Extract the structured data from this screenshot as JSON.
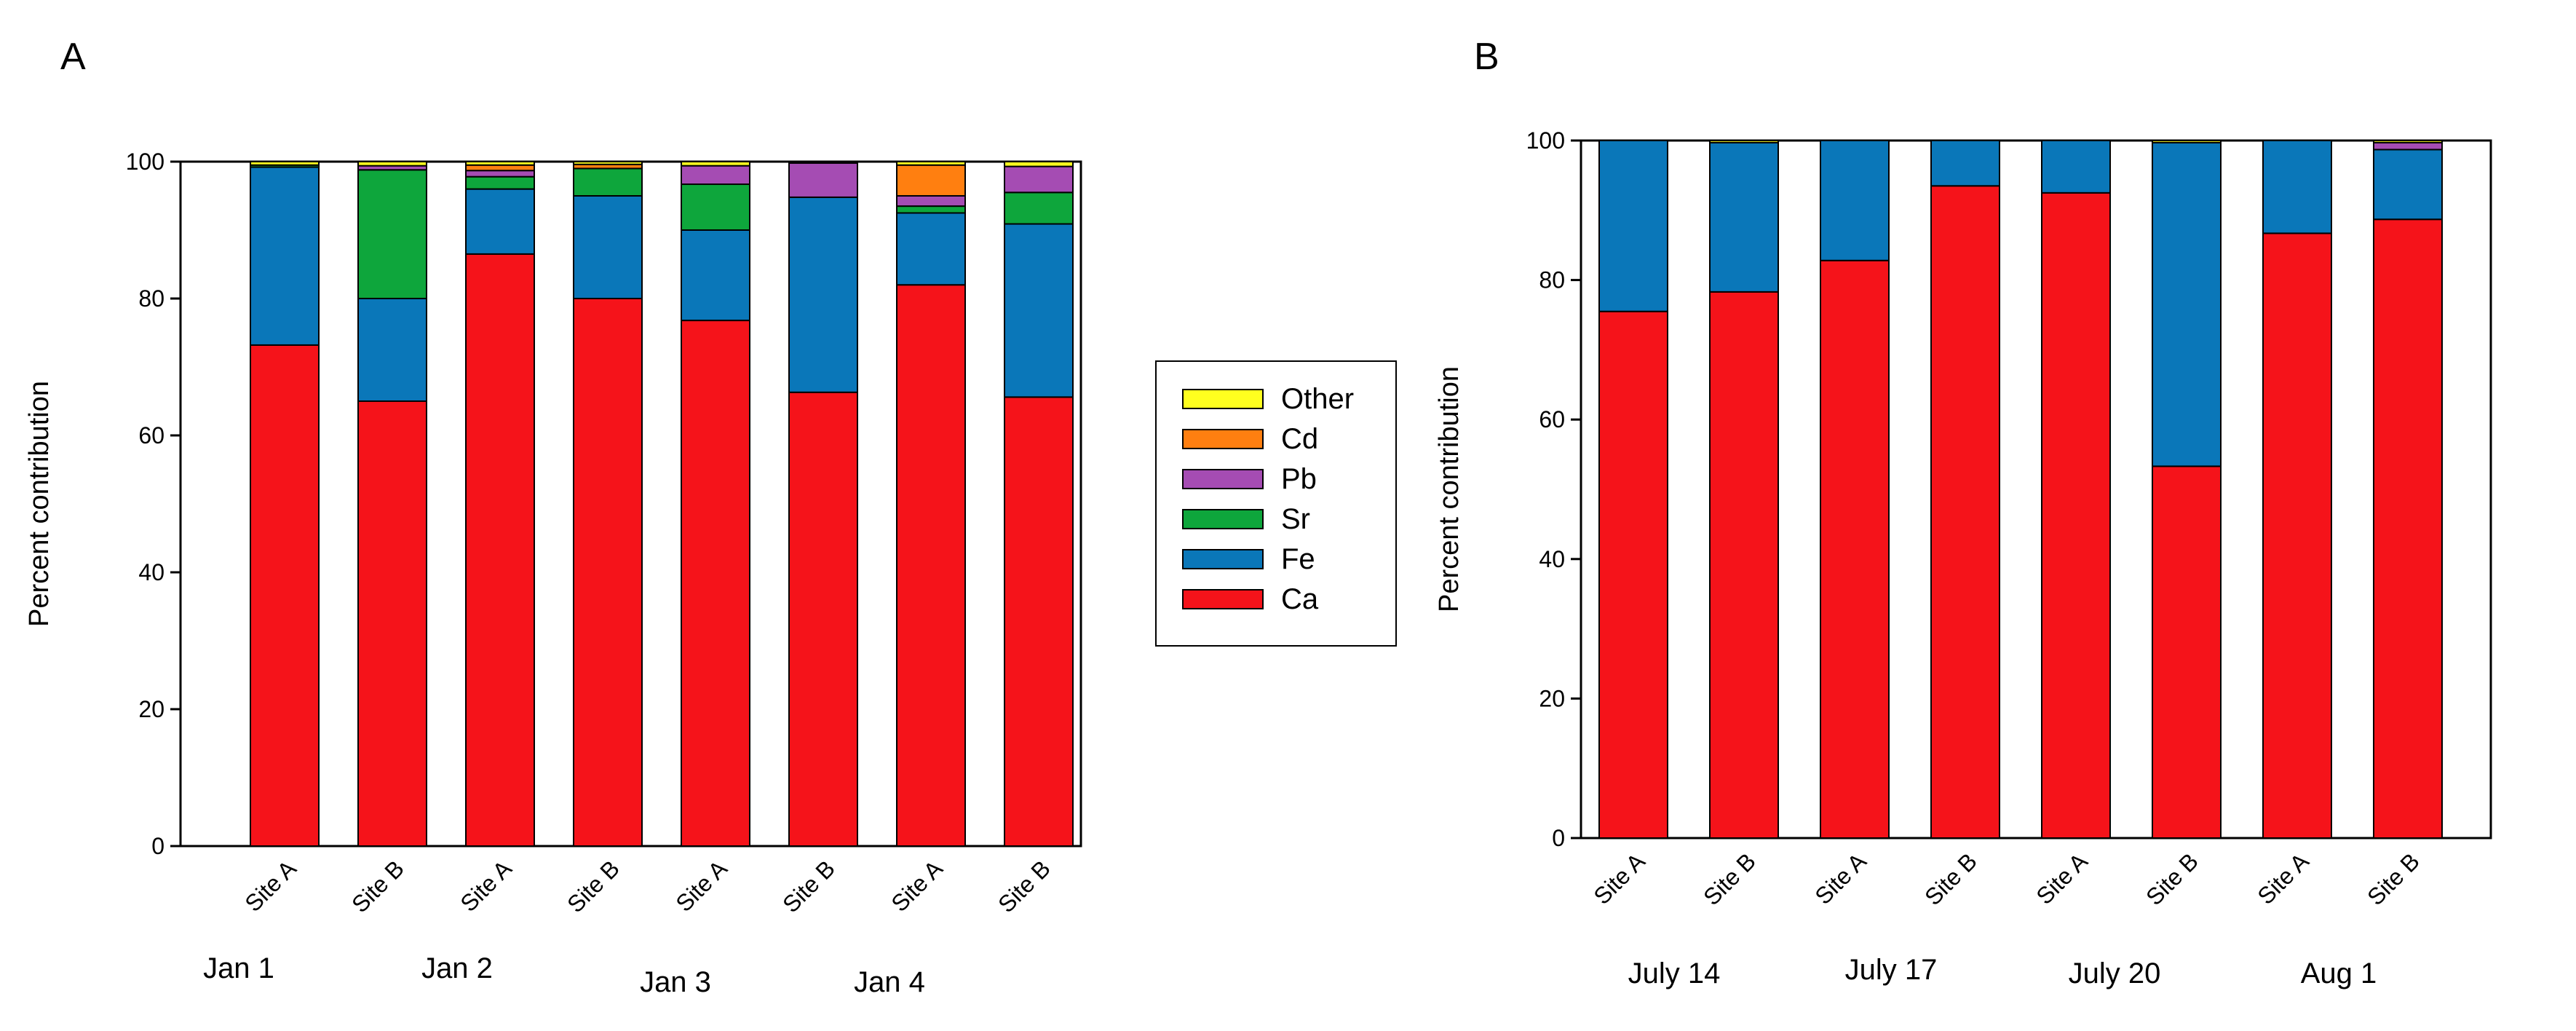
{
  "colors": {
    "Ca": "#f5131a",
    "Fe": "#0a77b9",
    "Sr": "#0ea63c",
    "Pb": "#a54cb3",
    "Cd": "#ff7f10",
    "Other": "#ffff1f"
  },
  "legend": [
    "Other",
    "Cd",
    "Pb",
    "Sr",
    "Fe",
    "Ca"
  ],
  "chart_data": [
    {
      "panel": "A",
      "type": "bar",
      "stacked": true,
      "ylabel": "Percent contribution",
      "xlabel": "",
      "ylim": [
        0,
        100
      ],
      "yticks": [
        0,
        20,
        40,
        60,
        80,
        100
      ],
      "categories": [
        "Site A",
        "Site B",
        "Site A",
        "Site B",
        "Site A",
        "Site B",
        "Site A",
        "Site B"
      ],
      "groups": [
        "Jan 1",
        "Jan 2",
        "Jan 3",
        "Jan 4"
      ],
      "series": [
        {
          "name": "Ca",
          "values": [
            73.2,
            65.0,
            86.5,
            80.0,
            76.8,
            66.3,
            82.0,
            65.6
          ]
        },
        {
          "name": "Fe",
          "values": [
            26.0,
            15.0,
            9.5,
            15.0,
            13.2,
            28.5,
            10.5,
            25.3
          ]
        },
        {
          "name": "Sr",
          "values": [
            0.3,
            18.8,
            1.8,
            4.0,
            6.7,
            0.0,
            1.0,
            4.6
          ]
        },
        {
          "name": "Pb",
          "values": [
            0.0,
            0.6,
            0.9,
            0.0,
            2.7,
            5.0,
            1.5,
            3.8
          ]
        },
        {
          "name": "Cd",
          "values": [
            0.0,
            0.0,
            0.8,
            0.6,
            0.0,
            0.0,
            4.5,
            0.0
          ]
        },
        {
          "name": "Other",
          "values": [
            0.5,
            0.6,
            0.5,
            0.4,
            0.6,
            0.2,
            0.5,
            0.7
          ]
        }
      ],
      "legend_position": "right"
    },
    {
      "panel": "B",
      "type": "bar",
      "stacked": true,
      "ylabel": "Percent contribution",
      "xlabel": "",
      "ylim": [
        0,
        100
      ],
      "yticks": [
        0,
        20,
        40,
        60,
        80,
        100
      ],
      "categories": [
        "Site A",
        "Site B",
        "Site A",
        "Site B",
        "Site A",
        "Site B",
        "Site A",
        "Site B"
      ],
      "groups": [
        "July 14",
        "July 17",
        "July 20",
        "Aug 1"
      ],
      "series": [
        {
          "name": "Ca",
          "values": [
            75.5,
            78.3,
            82.8,
            93.5,
            92.5,
            53.3,
            86.7,
            88.7
          ]
        },
        {
          "name": "Fe",
          "values": [
            24.5,
            21.4,
            17.2,
            6.5,
            7.5,
            46.4,
            13.3,
            10.0
          ]
        },
        {
          "name": "Pb",
          "values": [
            0.0,
            0.0,
            0.0,
            0.0,
            0.0,
            0.0,
            0.0,
            1.0
          ]
        },
        {
          "name": "Other",
          "values": [
            0.0,
            0.3,
            0.0,
            0.0,
            0.0,
            0.3,
            0.0,
            0.3
          ]
        }
      ]
    }
  ]
}
